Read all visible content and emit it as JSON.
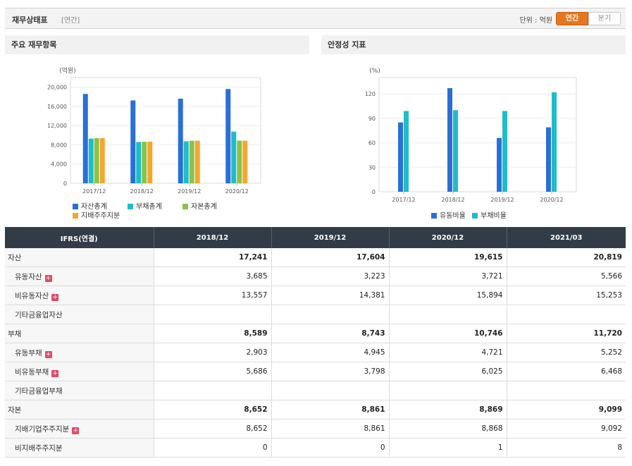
{
  "header": {
    "title": "재무상태표",
    "subtitle": "[연간]",
    "unit_label": "단위 : 억원",
    "toggle_annual": "연간",
    "toggle_quarter": "분기"
  },
  "left_panel": {
    "title": "주요 재무항목"
  },
  "right_panel": {
    "title": "안정성 지표"
  },
  "chart_data": [
    {
      "type": "bar",
      "title": "주요 재무항목",
      "ylabel": "(억원)",
      "categories": [
        "2017/12",
        "2018/12",
        "2019/12",
        "2020/12"
      ],
      "ylim": [
        0,
        22000
      ],
      "yticks": [
        0,
        4000,
        8000,
        12000,
        16000,
        20000
      ],
      "ytick_labels": [
        "0",
        "4,000",
        "8,000",
        "12,000",
        "16,000",
        "20,000"
      ],
      "series": [
        {
          "name": "자산총계",
          "color": "#2b6fd6",
          "values": [
            18600,
            17241,
            17604,
            19615
          ]
        },
        {
          "name": "부채총계",
          "color": "#1fbcc9",
          "values": [
            9300,
            8589,
            8743,
            10746
          ]
        },
        {
          "name": "자본총계",
          "color": "#8bc34a",
          "values": [
            9400,
            8652,
            8861,
            8869
          ]
        },
        {
          "name": "지배주주지분",
          "color": "#f7a52f",
          "values": [
            9400,
            8652,
            8861,
            8868
          ]
        }
      ]
    },
    {
      "type": "bar",
      "title": "안정성 지표",
      "ylabel": "(%)",
      "categories": [
        "2017/12",
        "2018/12",
        "2019/12",
        "2020/12"
      ],
      "ylim": [
        0,
        140
      ],
      "yticks": [
        0,
        30,
        60,
        90,
        120
      ],
      "ytick_labels": [
        "0",
        "30",
        "60",
        "90",
        "120"
      ],
      "series": [
        {
          "name": "유동비율",
          "color": "#2b6fd6",
          "values": [
            85,
            127,
            66,
            79
          ]
        },
        {
          "name": "부채비율",
          "color": "#1fbcc9",
          "values": [
            99,
            100,
            99,
            122
          ]
        }
      ]
    }
  ],
  "table": {
    "header": [
      "IFRS(연결)",
      "2018/12",
      "2019/12",
      "2020/12",
      "2021/03"
    ],
    "rows": [
      {
        "label": "자산",
        "main": true,
        "plus": false,
        "values": [
          "17,241",
          "17,604",
          "19,615",
          "20,819"
        ]
      },
      {
        "label": "유동자산",
        "main": false,
        "plus": true,
        "values": [
          "3,685",
          "3,223",
          "3,721",
          "5,566"
        ]
      },
      {
        "label": "비유동자산",
        "main": false,
        "plus": true,
        "values": [
          "13,557",
          "14,381",
          "15,894",
          "15,253"
        ]
      },
      {
        "label": "기타금융업자산",
        "main": false,
        "plus": false,
        "values": [
          "",
          "",
          "",
          ""
        ]
      },
      {
        "label": "부채",
        "main": true,
        "plus": false,
        "values": [
          "8,589",
          "8,743",
          "10,746",
          "11,720"
        ]
      },
      {
        "label": "유동부채",
        "main": false,
        "plus": true,
        "values": [
          "2,903",
          "4,945",
          "4,721",
          "5,252"
        ]
      },
      {
        "label": "비유동부채",
        "main": false,
        "plus": true,
        "values": [
          "5,686",
          "3,798",
          "6,025",
          "6,468"
        ]
      },
      {
        "label": "기타금융업부채",
        "main": false,
        "plus": false,
        "values": [
          "",
          "",
          "",
          ""
        ]
      },
      {
        "label": "자본",
        "main": true,
        "plus": false,
        "values": [
          "8,652",
          "8,861",
          "8,869",
          "9,099"
        ]
      },
      {
        "label": "지배기업주주지분",
        "main": false,
        "plus": true,
        "values": [
          "8,652",
          "8,861",
          "8,868",
          "9,092"
        ]
      },
      {
        "label": "비지배주주지분",
        "main": false,
        "plus": false,
        "values": [
          "0",
          "0",
          "1",
          "8"
        ]
      }
    ]
  }
}
